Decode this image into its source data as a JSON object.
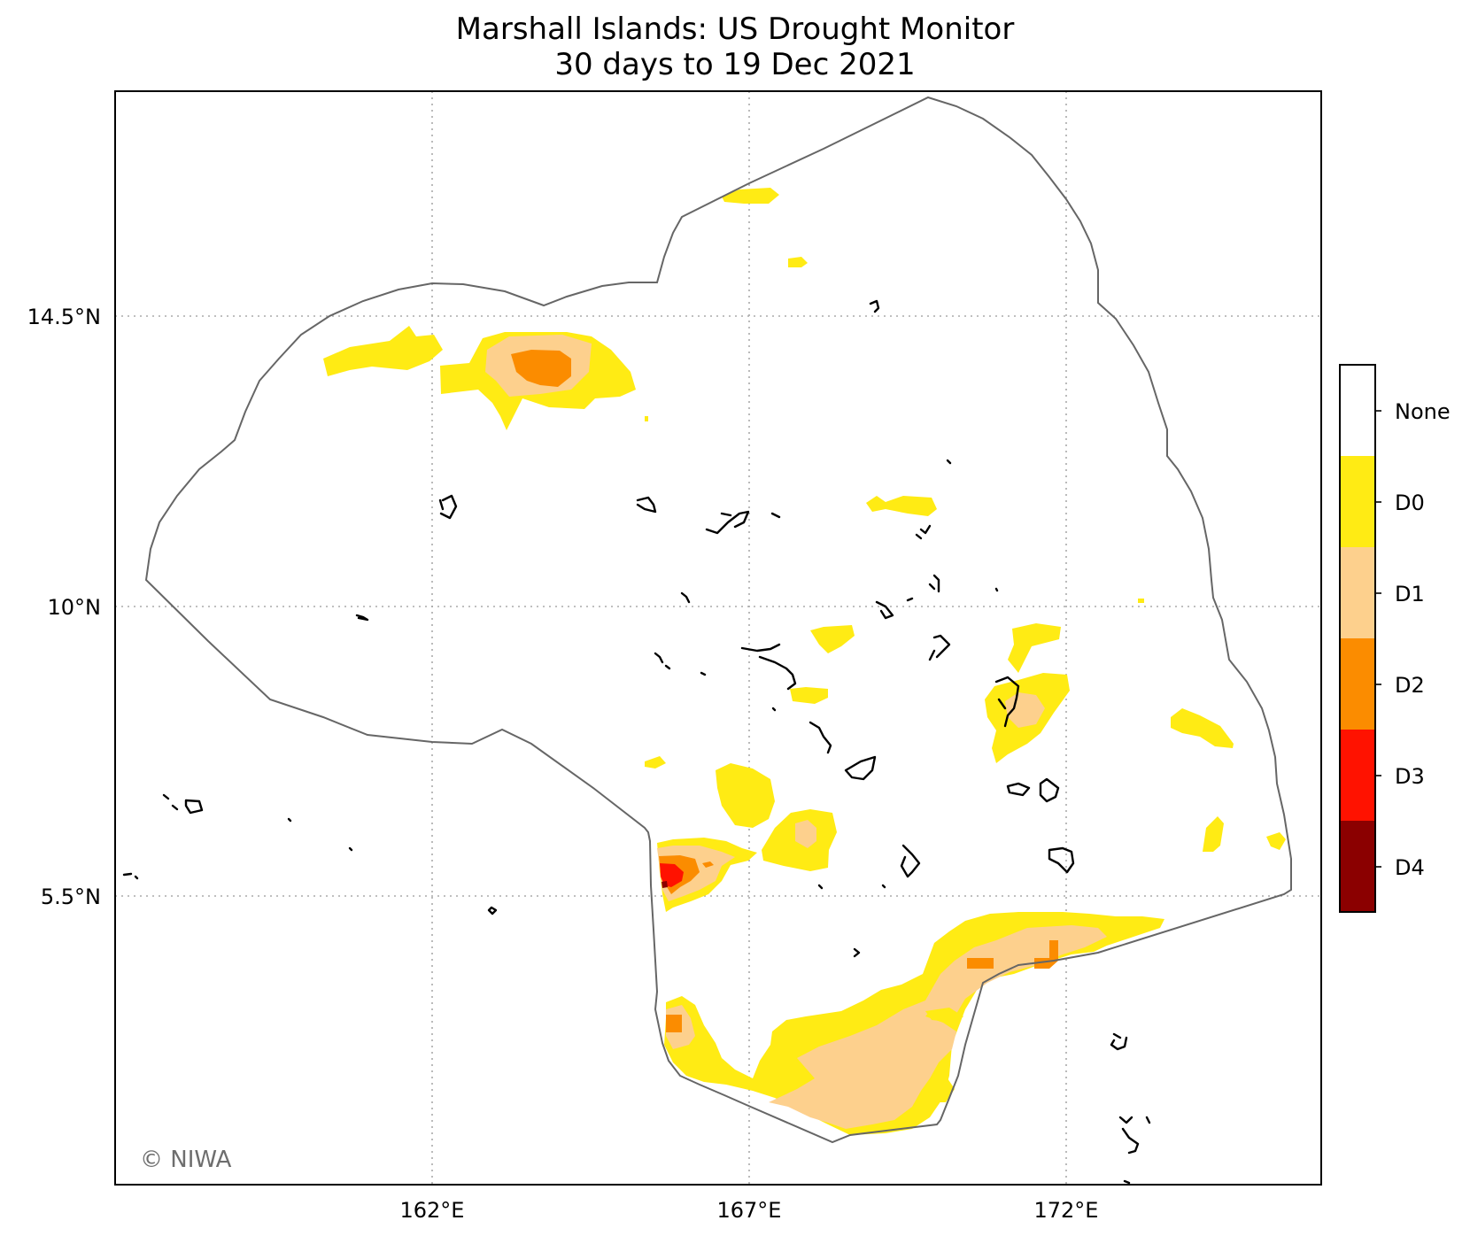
{
  "title": "Marshall Islands: US Drought Monitor",
  "subtitle": "30 days to 19 Dec 2021",
  "credit": "© NIWA",
  "axes": {
    "x_ticks": [
      "162°E",
      "167°E",
      "172°E"
    ],
    "y_ticks": [
      "14.5°N",
      "10°N",
      "5.5°N"
    ]
  },
  "legend": {
    "categories": [
      {
        "label": "None",
        "color": "#ffffff"
      },
      {
        "label": "D0",
        "color": "#ffeb14"
      },
      {
        "label": "D1",
        "color": "#fdd08d"
      },
      {
        "label": "D2",
        "color": "#fb8c00"
      },
      {
        "label": "D3",
        "color": "#ff1200"
      },
      {
        "label": "D4",
        "color": "#8b0000"
      }
    ]
  },
  "colors": {
    "boundary": "#666666",
    "grid": "#aaaaaa",
    "islands": "#000000"
  }
}
